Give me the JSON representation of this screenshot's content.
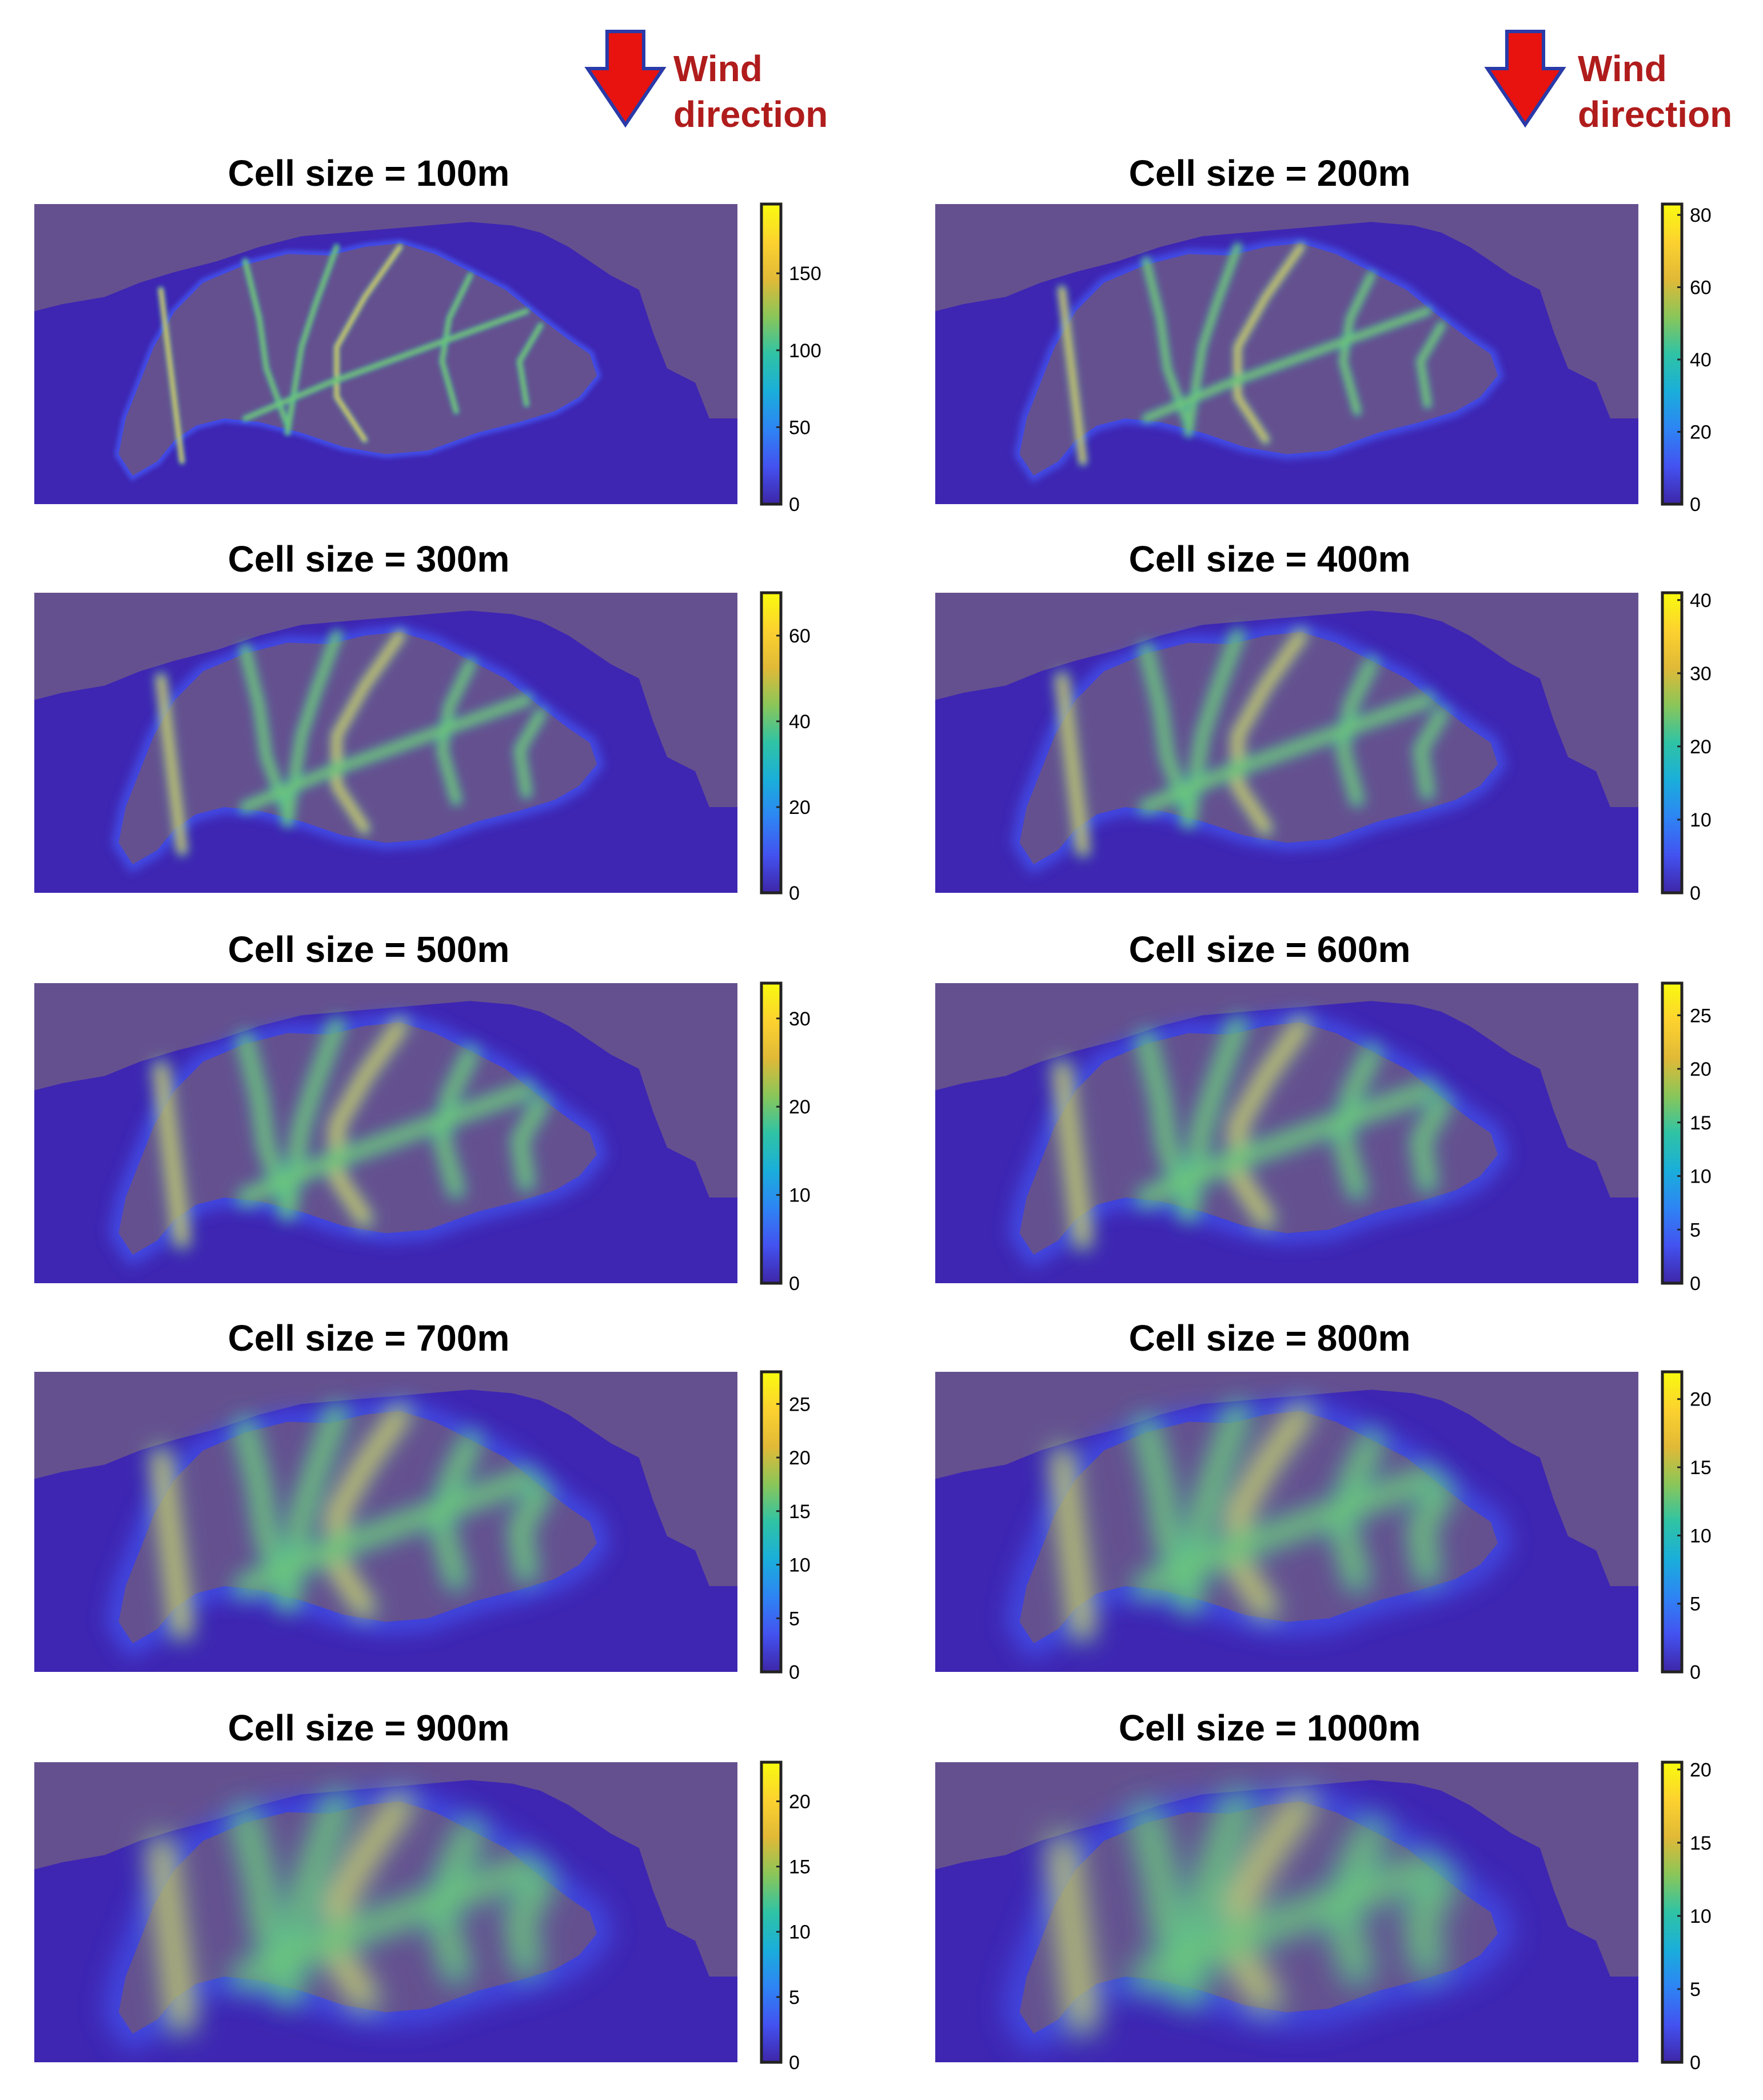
{
  "wind": {
    "label_line1": "Wind",
    "label_line2": "direction",
    "arrow_color": "#e8120f",
    "arrow_outline": "#2a3aa8"
  },
  "colors": {
    "sea": "#3e26b2",
    "land": "#65508f",
    "colormap": [
      "#3e26a8",
      "#4352f0",
      "#2e84f4",
      "#1aaedb",
      "#2fc3a5",
      "#8ac659",
      "#e1b937",
      "#fcd22f",
      "#f9fb0e"
    ]
  },
  "chart_data": [
    {
      "type": "heatmap",
      "title": "Cell size = 100m",
      "colorbar": {
        "ticks": [
          0,
          50,
          100,
          150
        ],
        "max": 195
      }
    },
    {
      "type": "heatmap",
      "title": "Cell size = 200m",
      "colorbar": {
        "ticks": [
          0,
          20,
          40,
          60,
          80
        ],
        "max": 83
      }
    },
    {
      "type": "heatmap",
      "title": "Cell size = 300m",
      "colorbar": {
        "ticks": [
          0,
          20,
          40,
          60
        ],
        "max": 70
      }
    },
    {
      "type": "heatmap",
      "title": "Cell size = 400m",
      "colorbar": {
        "ticks": [
          0,
          10,
          20,
          30,
          40
        ],
        "max": 41
      }
    },
    {
      "type": "heatmap",
      "title": "Cell size = 500m",
      "colorbar": {
        "ticks": [
          0,
          10,
          20,
          30
        ],
        "max": 34
      }
    },
    {
      "type": "heatmap",
      "title": "Cell size = 600m",
      "colorbar": {
        "ticks": [
          0,
          5,
          10,
          15,
          20,
          25
        ],
        "max": 28
      }
    },
    {
      "type": "heatmap",
      "title": "Cell size = 700m",
      "colorbar": {
        "ticks": [
          0,
          5,
          10,
          15,
          20,
          25
        ],
        "max": 28
      }
    },
    {
      "type": "heatmap",
      "title": "Cell size = 800m",
      "colorbar": {
        "ticks": [
          0,
          5,
          10,
          15,
          20
        ],
        "max": 22
      }
    },
    {
      "type": "heatmap",
      "title": "Cell size = 900m",
      "colorbar": {
        "ticks": [
          0,
          5,
          10,
          15,
          20
        ],
        "max": 23
      }
    },
    {
      "type": "heatmap",
      "title": "Cell size = 1000m",
      "colorbar": {
        "ticks": [
          0,
          5,
          10,
          15,
          20
        ],
        "max": 20.5
      }
    }
  ]
}
